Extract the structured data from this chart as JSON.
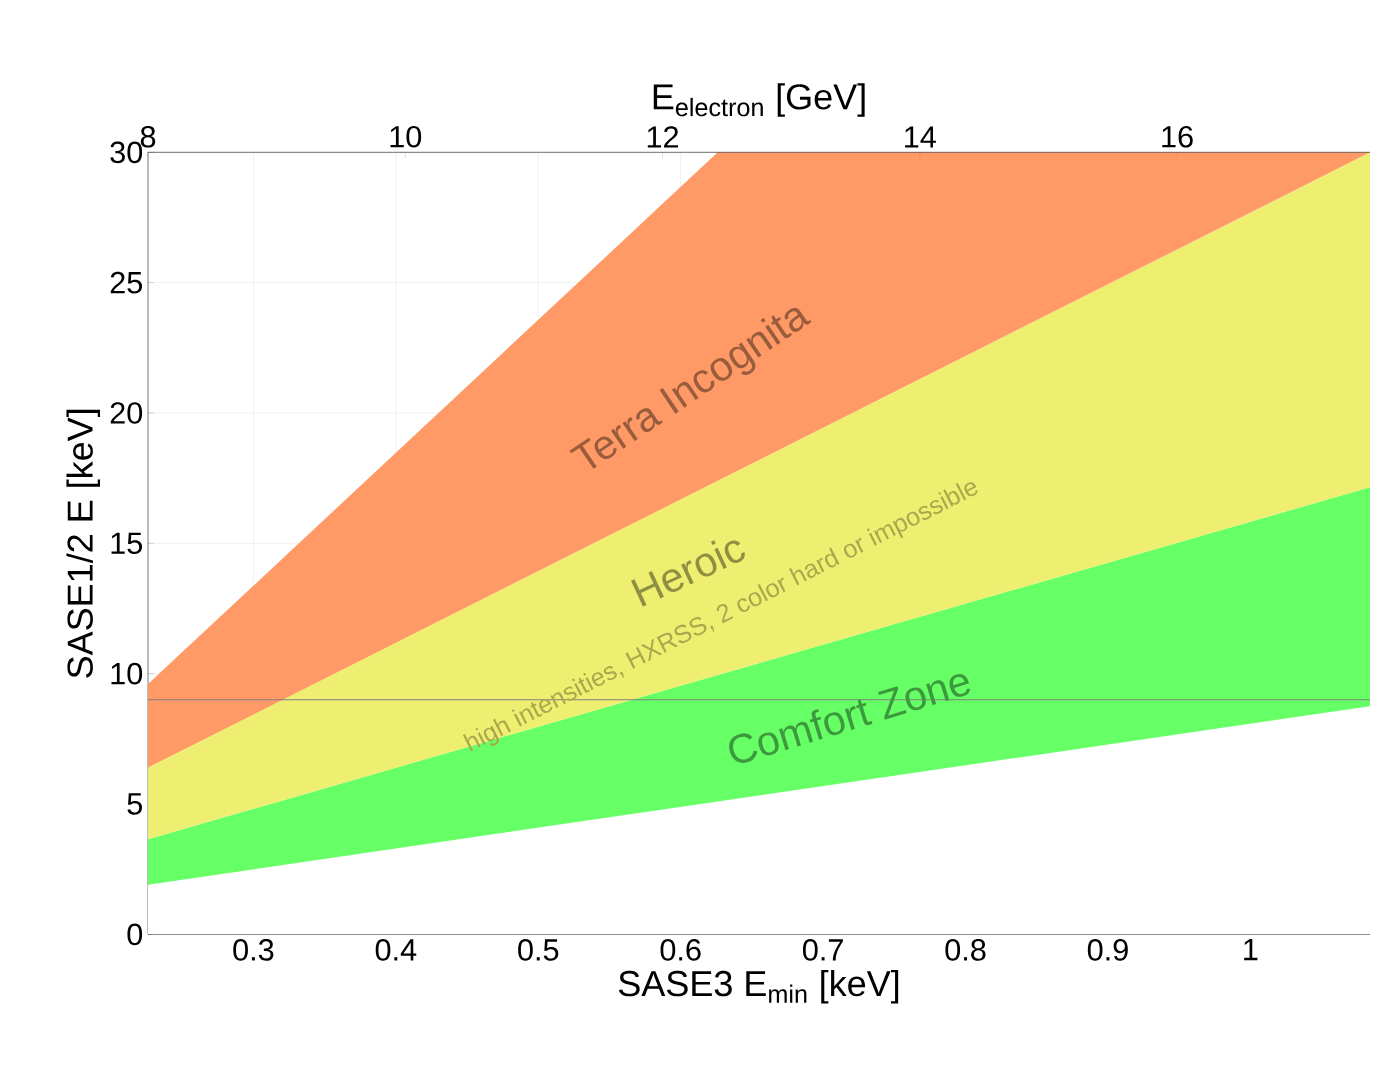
{
  "chart_data": {
    "type": "area",
    "stacked": true,
    "xlabel": "SASE3 E$_{min}$ [keV]",
    "ylabel": "SASE1/2 E [keV]",
    "x2label": "E$_{electron}$ [GeV]",
    "xlim": [
      0.226,
      1.084
    ],
    "xticks": [
      0.3,
      0.4,
      0.5,
      0.6,
      0.7,
      0.8,
      0.9,
      1
    ],
    "x2lim": [
      8,
      17.5
    ],
    "x2ticks": [
      8,
      10,
      12,
      14,
      16
    ],
    "ylim": [
      0,
      30
    ],
    "yticks": [
      0,
      5,
      10,
      15,
      20,
      25,
      30
    ],
    "grid": true,
    "x": [
      0.226,
      0.626,
      1.084
    ],
    "series": [
      {
        "color": "#ffffff",
        "values": [
          1.9,
          5.1,
          8.75
        ]
      },
      {
        "name": "Comfort Zone",
        "color": "#66ff66",
        "values": [
          1.75,
          4.85,
          8.4
        ]
      },
      {
        "name": "Heroic",
        "color": "#eeee70",
        "values": [
          2.75,
          7.45,
          12.85
        ]
      },
      {
        "name": "Terra Incognita",
        "color": "#ff9966",
        "values": [
          3.2,
          12.6,
          0
        ]
      }
    ],
    "annotations": [
      "high intensities, HXRSS, 2 color hard or impossible"
    ],
    "ref_lines": [
      {
        "axis": "y",
        "value": 9,
        "color": "#808080"
      }
    ]
  }
}
